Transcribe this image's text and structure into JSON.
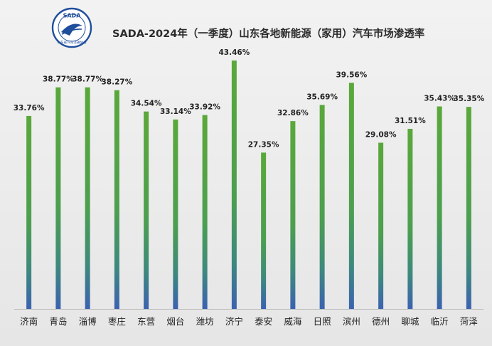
{
  "header": {
    "title": "SADA-2024年（一季度）山东各地新能源（家用）汽车市场渗透率",
    "logo_text": "SADA",
    "logo_subtext": "山东省汽车流通协会"
  },
  "colors": {
    "bar_top": "#5aa83a",
    "bar_mid": "#3f9a6a",
    "bar_bottom": "#3b62b0",
    "axis": "#bfbfbf",
    "label": "#222222"
  },
  "chart_data": {
    "type": "bar",
    "title": "SADA-2024年（一季度）山东各地新能源（家用）汽车市场渗透率",
    "xlabel": "",
    "ylabel": "",
    "unit": "%",
    "categories": [
      "济南",
      "青岛",
      "淄博",
      "枣庄",
      "东营",
      "烟台",
      "潍坊",
      "济宁",
      "泰安",
      "威海",
      "日照",
      "滨州",
      "德州",
      "聊城",
      "临沂",
      "菏泽"
    ],
    "values": [
      33.76,
      38.77,
      38.77,
      38.27,
      34.54,
      33.14,
      33.92,
      43.46,
      27.35,
      32.86,
      35.69,
      39.56,
      29.08,
      31.51,
      35.43,
      35.35
    ],
    "data_labels": [
      "33.76%",
      "38.77%",
      "38.77%",
      "38.27%",
      "34.54%",
      "33.14%",
      "33.92%",
      "43.46%",
      "27.35%",
      "32.86%",
      "35.69%",
      "39.56%",
      "29.08%",
      "31.51%",
      "35.43%",
      "35.35%"
    ],
    "ylim": [
      0,
      43.46
    ],
    "grid": false,
    "legend": "none"
  }
}
